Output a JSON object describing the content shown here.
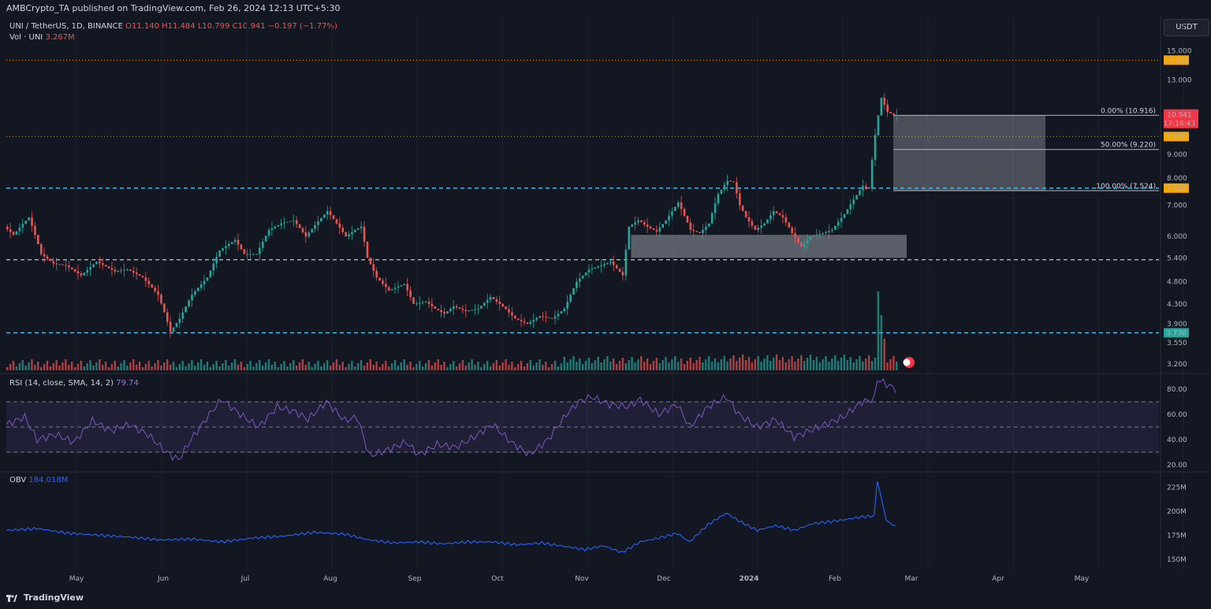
{
  "header": {
    "published": "AMBCrypto_TA published on TradingView.com, Feb 26, 2024 12:13 UTC+5:30",
    "symbol": "UNI / TetherUS, 1D, BINANCE",
    "ohlc": "O11.140 H11.484 L10.799 C10.941 −0.197 (−1.77%)",
    "volume_label": "Vol · UNI",
    "volume_value": "3.267M",
    "currency": "USDT"
  },
  "footer": {
    "brand": "TradingView"
  },
  "colors": {
    "up": "#26a69a",
    "down": "#ef5350",
    "bg": "#131722",
    "grid": "#1e222d",
    "rsi": "#7e57c2",
    "obv": "#2962ff",
    "level": "#4fc3f7",
    "orange": "#f7a600"
  },
  "chart_data": [
    {
      "type": "candlestick",
      "title": "UNI / TetherUS, 1D, BINANCE",
      "x_tick_labels": [
        "May",
        "Jun",
        "Jul",
        "Aug",
        "Sep",
        "Oct",
        "Nov",
        "Dec",
        "2024",
        "Feb",
        "Mar",
        "Apr",
        "May"
      ],
      "y_tick_labels": [
        "15.000",
        "13.000",
        "9.000",
        "8.000",
        "7.000",
        "6.000",
        "5.400",
        "4.800",
        "4.300",
        "3.900",
        "3.550",
        "3.200"
      ],
      "y_scale": "log",
      "ylim": [
        3.1,
        16.0
      ],
      "price_path": [
        [
          0,
          6.3
        ],
        [
          3,
          6.05
        ],
        [
          8,
          6.6
        ],
        [
          12,
          5.5
        ],
        [
          16,
          5.25
        ],
        [
          20,
          5.2
        ],
        [
          25,
          4.95
        ],
        [
          30,
          5.3
        ],
        [
          36,
          5.05
        ],
        [
          40,
          5.1
        ],
        [
          45,
          4.9
        ],
        [
          50,
          4.5
        ],
        [
          54,
          3.75
        ],
        [
          57,
          4.0
        ],
        [
          61,
          4.5
        ],
        [
          66,
          4.9
        ],
        [
          70,
          5.6
        ],
        [
          75,
          5.9
        ],
        [
          78,
          5.5
        ],
        [
          82,
          5.5
        ],
        [
          86,
          6.2
        ],
        [
          90,
          6.4
        ],
        [
          94,
          6.5
        ],
        [
          98,
          6.0
        ],
        [
          101,
          6.35
        ],
        [
          105,
          6.8
        ],
        [
          108,
          6.4
        ],
        [
          111,
          6.0
        ],
        [
          114,
          6.2
        ],
        [
          116,
          6.3
        ],
        [
          118,
          5.4
        ],
        [
          121,
          4.9
        ],
        [
          125,
          4.6
        ],
        [
          130,
          4.75
        ],
        [
          133,
          4.3
        ],
        [
          137,
          4.35
        ],
        [
          140,
          4.2
        ],
        [
          143,
          4.1
        ],
        [
          146,
          4.25
        ],
        [
          150,
          4.15
        ],
        [
          154,
          4.2
        ],
        [
          158,
          4.45
        ],
        [
          162,
          4.25
        ],
        [
          166,
          4.0
        ],
        [
          170,
          3.9
        ],
        [
          174,
          4.05
        ],
        [
          178,
          4.0
        ],
        [
          182,
          4.2
        ],
        [
          186,
          4.8
        ],
        [
          190,
          5.1
        ],
        [
          194,
          5.2
        ],
        [
          197,
          5.3
        ],
        [
          201,
          4.95
        ],
        [
          203,
          6.3
        ],
        [
          206,
          6.5
        ],
        [
          209,
          6.3
        ],
        [
          212,
          6.15
        ],
        [
          215,
          6.5
        ],
        [
          219,
          7.1
        ],
        [
          223,
          6.2
        ],
        [
          226,
          6.1
        ],
        [
          229,
          6.4
        ],
        [
          232,
          7.4
        ],
        [
          235,
          7.9
        ],
        [
          237,
          7.85
        ],
        [
          239,
          7.0
        ],
        [
          241,
          6.6
        ],
        [
          244,
          6.2
        ],
        [
          247,
          6.4
        ],
        [
          250,
          6.8
        ],
        [
          253,
          6.6
        ],
        [
          256,
          6.1
        ],
        [
          259,
          5.7
        ],
        [
          262,
          6.0
        ],
        [
          266,
          6.1
        ],
        [
          269,
          6.2
        ],
        [
          273,
          6.7
        ],
        [
          276,
          7.2
        ],
        [
          279,
          7.7
        ],
        [
          281,
          7.6
        ],
        [
          283,
          9.9
        ],
        [
          285,
          11.9
        ],
        [
          287,
          11.1
        ],
        [
          289,
          10.94
        ]
      ],
      "total_days": 290,
      "price_levels": [
        {
          "value": 14.331,
          "label": "14.331",
          "style": "dotted",
          "color": "#f7a600"
        },
        {
          "value": 9.83,
          "label": "9.830",
          "style": "dotted",
          "color": "#f7a600"
        },
        {
          "value": 7.619,
          "label": "7.619",
          "style": "dashed",
          "color": "#4fc3f7"
        },
        {
          "value": 3.73,
          "label": "3.730",
          "style": "dashed",
          "color": "#4fc3f7"
        },
        {
          "value": 5.35,
          "label": "",
          "style": "dashed",
          "color": "#b2b5be"
        }
      ],
      "last_price": {
        "label": "10.941",
        "countdown": "17:16:43"
      },
      "fib_levels": [
        {
          "ratio_label": "0.00% (10.916)",
          "value": 10.916
        },
        {
          "ratio_label": "50.00% (9.220)",
          "value": 9.22
        },
        {
          "ratio_label": "100.00% (7.524)",
          "value": 7.524
        }
      ],
      "demand_zone": {
        "from_day": 203,
        "to_day": 290,
        "low": 5.4,
        "high": 6.05
      }
    },
    {
      "type": "line",
      "title": "RSI (14, close, SMA, 14, 2)",
      "name": "RSI (14, close, SMA, 14, 2)",
      "value_label": "79.74",
      "y_tick_labels": [
        "80.00",
        "60.00",
        "40.00",
        "20.00"
      ],
      "ylim": [
        15,
        90
      ],
      "bands": [
        70,
        50,
        30
      ],
      "path": [
        [
          0,
          52
        ],
        [
          6,
          58
        ],
        [
          10,
          40
        ],
        [
          16,
          44
        ],
        [
          22,
          38
        ],
        [
          28,
          55
        ],
        [
          34,
          47
        ],
        [
          40,
          52
        ],
        [
          46,
          44
        ],
        [
          52,
          30
        ],
        [
          56,
          24
        ],
        [
          60,
          40
        ],
        [
          66,
          60
        ],
        [
          70,
          72
        ],
        [
          76,
          60
        ],
        [
          82,
          50
        ],
        [
          88,
          66
        ],
        [
          94,
          62
        ],
        [
          98,
          56
        ],
        [
          104,
          70
        ],
        [
          110,
          55
        ],
        [
          114,
          58
        ],
        [
          118,
          27
        ],
        [
          124,
          32
        ],
        [
          130,
          38
        ],
        [
          134,
          28
        ],
        [
          140,
          36
        ],
        [
          146,
          34
        ],
        [
          152,
          42
        ],
        [
          158,
          52
        ],
        [
          164,
          38
        ],
        [
          170,
          28
        ],
        [
          176,
          40
        ],
        [
          182,
          60
        ],
        [
          186,
          70
        ],
        [
          190,
          74
        ],
        [
          196,
          68
        ],
        [
          202,
          66
        ],
        [
          206,
          72
        ],
        [
          212,
          60
        ],
        [
          218,
          68
        ],
        [
          222,
          50
        ],
        [
          228,
          66
        ],
        [
          234,
          74
        ],
        [
          238,
          60
        ],
        [
          244,
          50
        ],
        [
          250,
          56
        ],
        [
          256,
          42
        ],
        [
          262,
          48
        ],
        [
          268,
          54
        ],
        [
          272,
          58
        ],
        [
          278,
          70
        ],
        [
          282,
          72
        ],
        [
          283,
          88
        ],
        [
          286,
          84
        ],
        [
          289,
          80
        ]
      ]
    },
    {
      "type": "line",
      "title": "OBV",
      "name": "OBV",
      "value_label": "184.018M",
      "y_tick_labels": [
        "225M",
        "200M",
        "175M",
        "150M"
      ],
      "ylim": [
        140,
        240
      ],
      "path": [
        [
          0,
          180
        ],
        [
          10,
          182
        ],
        [
          20,
          177
        ],
        [
          30,
          175
        ],
        [
          40,
          173
        ],
        [
          50,
          170
        ],
        [
          60,
          171
        ],
        [
          70,
          168
        ],
        [
          80,
          172
        ],
        [
          90,
          174
        ],
        [
          100,
          178
        ],
        [
          110,
          176
        ],
        [
          118,
          170
        ],
        [
          126,
          167
        ],
        [
          134,
          168
        ],
        [
          142,
          166
        ],
        [
          150,
          168
        ],
        [
          158,
          168
        ],
        [
          166,
          165
        ],
        [
          174,
          167
        ],
        [
          182,
          163
        ],
        [
          188,
          160
        ],
        [
          194,
          164
        ],
        [
          200,
          157
        ],
        [
          206,
          168
        ],
        [
          212,
          172
        ],
        [
          218,
          177
        ],
        [
          222,
          168
        ],
        [
          228,
          186
        ],
        [
          234,
          198
        ],
        [
          238,
          190
        ],
        [
          244,
          180
        ],
        [
          250,
          185
        ],
        [
          256,
          180
        ],
        [
          262,
          187
        ],
        [
          270,
          190
        ],
        [
          278,
          194
        ],
        [
          282,
          195
        ],
        [
          283,
          232
        ],
        [
          286,
          190
        ],
        [
          289,
          184
        ]
      ]
    }
  ]
}
